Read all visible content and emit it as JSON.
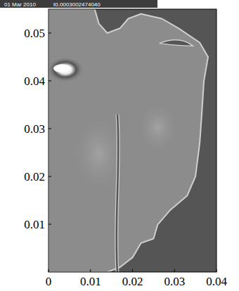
{
  "chart_data": {
    "type": "field",
    "title": "01 Mar 2010",
    "subtitle": "t0.0003002474040",
    "xlim": [
      0,
      0.04
    ],
    "ylim": [
      0,
      0.055
    ],
    "xticks": [
      0,
      0.01,
      0.02,
      0.03,
      0.04
    ],
    "yticks": [
      0.01,
      0.02,
      0.03,
      0.04,
      0.05
    ]
  }
}
